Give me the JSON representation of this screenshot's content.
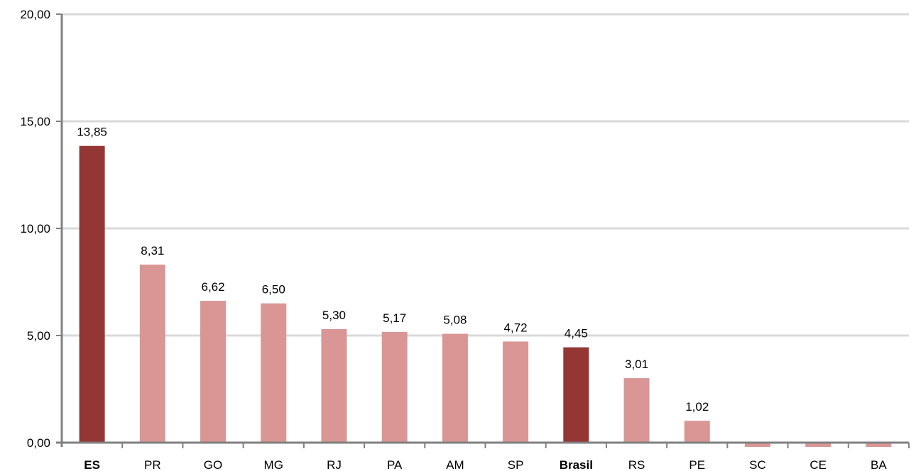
{
  "chart_data": {
    "type": "bar",
    "title": "",
    "xlabel": "",
    "ylabel": "",
    "ylim": [
      0,
      20
    ],
    "yticks": [
      "0,00",
      "5,00",
      "10,00",
      "15,00",
      "20,00"
    ],
    "ytick_values": [
      0,
      5,
      10,
      15,
      20
    ],
    "grid": true,
    "categories": [
      "ES",
      "PR",
      "GO",
      "MG",
      "RJ",
      "PA",
      "AM",
      "SP",
      "Brasil",
      "RS",
      "PE",
      "SC",
      "CE",
      "BA"
    ],
    "values": [
      13.85,
      8.31,
      6.62,
      6.5,
      5.3,
      5.17,
      5.08,
      4.72,
      4.45,
      3.01,
      1.02,
      -0.2,
      -0.2,
      -0.2
    ],
    "data_labels": [
      "13,85",
      "8,31",
      "6,62",
      "6,50",
      "5,30",
      "5,17",
      "5,08",
      "4,72",
      "4,45",
      "3,01",
      "1,02",
      "",
      "",
      ""
    ],
    "highlighted": [
      "ES",
      "Brasil"
    ],
    "bold_categories": [
      "ES",
      "Brasil"
    ],
    "colors": {
      "highlight": "#943634",
      "normal": "#d99694",
      "grid": "#d9d9d9",
      "axis": "#808080"
    }
  }
}
